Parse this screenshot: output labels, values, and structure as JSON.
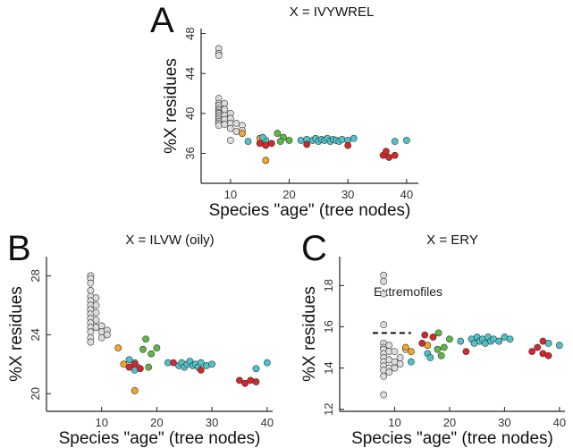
{
  "chart_data": [
    {
      "type": "scatter",
      "panel_label": "A",
      "title": "X = IVYWREL",
      "x_label": "Species \"age\" (tree nodes)",
      "y_label": "%X residues",
      "xlim": [
        5,
        42
      ],
      "ylim": [
        33,
        48.5
      ],
      "xticks": [
        10,
        20,
        30,
        40
      ],
      "yticks": [
        36,
        40,
        44,
        48
      ],
      "series": [
        {
          "color": "#dcdcdc",
          "x": [
            8,
            8,
            8,
            8,
            8,
            8,
            8,
            8,
            8,
            8,
            8,
            8,
            8,
            8,
            8,
            8,
            9,
            9,
            9,
            9,
            9,
            10,
            10,
            10,
            10,
            10,
            11,
            11,
            12,
            12
          ],
          "y": [
            46.5,
            46,
            45.8,
            41.5,
            41,
            40.8,
            40.5,
            40.3,
            40.1,
            40,
            39.8,
            39.6,
            39.4,
            39.2,
            39,
            38.8,
            41,
            40.4,
            39.8,
            39.4,
            38.9,
            40,
            39.5,
            39,
            38.5,
            37.3,
            39,
            38.2,
            38.8,
            38.3
          ]
        },
        {
          "color": "#f5a623",
          "x": [
            12,
            16,
            15
          ],
          "y": [
            38,
            35.3,
            37.5
          ]
        },
        {
          "color": "#4fc1c8",
          "x": [
            13,
            16,
            15.5,
            22,
            23,
            24,
            24.5,
            25,
            25.5,
            26,
            26.5,
            27,
            27.5,
            28,
            28.5,
            29,
            30,
            31,
            38,
            40
          ],
          "y": [
            37.2,
            37.3,
            37.6,
            37.3,
            37.4,
            37.3,
            37.5,
            37.2,
            37.4,
            37.3,
            37.5,
            37.2,
            37.4,
            37.3,
            37.2,
            37.4,
            37.3,
            37.5,
            37.2,
            37.3
          ]
        },
        {
          "color": "#d7262b",
          "x": [
            15,
            16,
            17,
            23,
            30,
            36,
            37,
            38,
            36.5
          ],
          "y": [
            37,
            36.8,
            37,
            36.9,
            36.8,
            35.8,
            35.6,
            35.8,
            36.2
          ]
        },
        {
          "color": "#5cb946",
          "x": [
            18,
            19,
            18.5,
            20
          ],
          "y": [
            38,
            37.6,
            37.2,
            37.3
          ]
        }
      ]
    },
    {
      "type": "scatter",
      "panel_label": "B",
      "title": "X = ILVW (oily)",
      "x_label": "Species \"age\" (tree nodes)",
      "y_label": "%X residues",
      "xlim": [
        0,
        41
      ],
      "ylim": [
        18.8,
        29.3
      ],
      "xticks": [
        10,
        20,
        30,
        40
      ],
      "yticks": [
        20,
        24,
        28
      ],
      "series": [
        {
          "color": "#dcdcdc",
          "x": [
            8,
            8,
            8,
            8,
            8,
            8,
            8,
            8,
            8,
            8,
            8,
            8,
            8,
            8,
            8,
            9,
            9,
            9,
            9,
            9,
            10,
            10,
            10,
            11,
            11
          ],
          "y": [
            28,
            27.8,
            27.5,
            27,
            26.6,
            26.3,
            26,
            25.7,
            25.4,
            25.1,
            24.8,
            24.5,
            24.2,
            23.8,
            23.5,
            26.5,
            26,
            25.5,
            25,
            24.5,
            24.6,
            24.2,
            23.8,
            24.3,
            24
          ]
        },
        {
          "color": "#f5a623",
          "x": [
            13,
            16,
            16.5,
            14
          ],
          "y": [
            23.1,
            20.2,
            21.8,
            22
          ]
        },
        {
          "color": "#4fc1c8",
          "x": [
            15,
            16,
            16,
            22,
            24,
            24.5,
            25,
            25.5,
            26,
            26.5,
            27,
            27.5,
            28,
            29,
            30,
            38,
            40
          ],
          "y": [
            22.3,
            21.6,
            22.1,
            22.1,
            21.9,
            22.1,
            21.8,
            22,
            22.2,
            21.9,
            22,
            21.8,
            22.1,
            21.9,
            22,
            21.7,
            22.1
          ]
        },
        {
          "color": "#d7262b",
          "x": [
            15,
            16,
            17,
            23,
            28,
            35,
            36,
            37,
            38
          ],
          "y": [
            21.8,
            22,
            21.7,
            22.1,
            21.6,
            20.9,
            20.7,
            20.9,
            20.8
          ]
        },
        {
          "color": "#5cb946",
          "x": [
            18,
            19,
            18.5,
            20,
            17.5
          ],
          "y": [
            23.7,
            22.7,
            21.8,
            23.1,
            23
          ]
        }
      ]
    },
    {
      "type": "scatter",
      "panel_label": "C",
      "title": "X = ERY",
      "x_label": "Species \"age\" (tree nodes)",
      "y_label": "%X residues",
      "xlim": [
        0,
        41
      ],
      "ylim": [
        11.9,
        19.4
      ],
      "xticks": [
        10,
        20,
        30,
        40
      ],
      "yticks": [
        12,
        14,
        16,
        18
      ],
      "annotation": "Extremofiles",
      "hline": {
        "y": 15.7,
        "x_from": 6,
        "x_to": 13
      },
      "series": [
        {
          "color": "#dcdcdc",
          "x": [
            8,
            8,
            8,
            8,
            8,
            8,
            8,
            8,
            8,
            8,
            8,
            8,
            8,
            8,
            9,
            9,
            9,
            9,
            9,
            10,
            10,
            10,
            11,
            11,
            12
          ],
          "y": [
            18.5,
            18.2,
            17.6,
            16.1,
            15.2,
            15,
            14.9,
            14.7,
            14.5,
            14.3,
            14.1,
            13.9,
            13.6,
            12.7,
            15.1,
            14.8,
            14.4,
            14,
            13.8,
            14.8,
            14.3,
            14,
            14.2,
            14.5,
            14.9
          ]
        },
        {
          "color": "#f5a623",
          "x": [
            12,
            13,
            16
          ],
          "y": [
            15,
            14.8,
            15.1
          ]
        },
        {
          "color": "#4fc1c8",
          "x": [
            13,
            16,
            16.5,
            22,
            24,
            24.5,
            25,
            25.5,
            26,
            26.5,
            27,
            27.5,
            28,
            29,
            30,
            31,
            38,
            40
          ],
          "y": [
            14.3,
            14.7,
            14.5,
            15.3,
            15.4,
            15.2,
            15.5,
            15.3,
            15.4,
            15.2,
            15.5,
            15.3,
            15.4,
            15.3,
            15.5,
            15.4,
            15.2,
            15.1
          ]
        },
        {
          "color": "#d7262b",
          "x": [
            15,
            15.5,
            17,
            23,
            35,
            36,
            37,
            37,
            38
          ],
          "y": [
            15.2,
            15.6,
            15.5,
            14.8,
            14.8,
            15,
            14.7,
            15.3,
            14.6
          ]
        },
        {
          "color": "#5cb946",
          "x": [
            18,
            19,
            18.5,
            20,
            17.8
          ],
          "y": [
            15.7,
            15,
            14.6,
            15.4,
            14.9
          ]
        }
      ]
    }
  ]
}
